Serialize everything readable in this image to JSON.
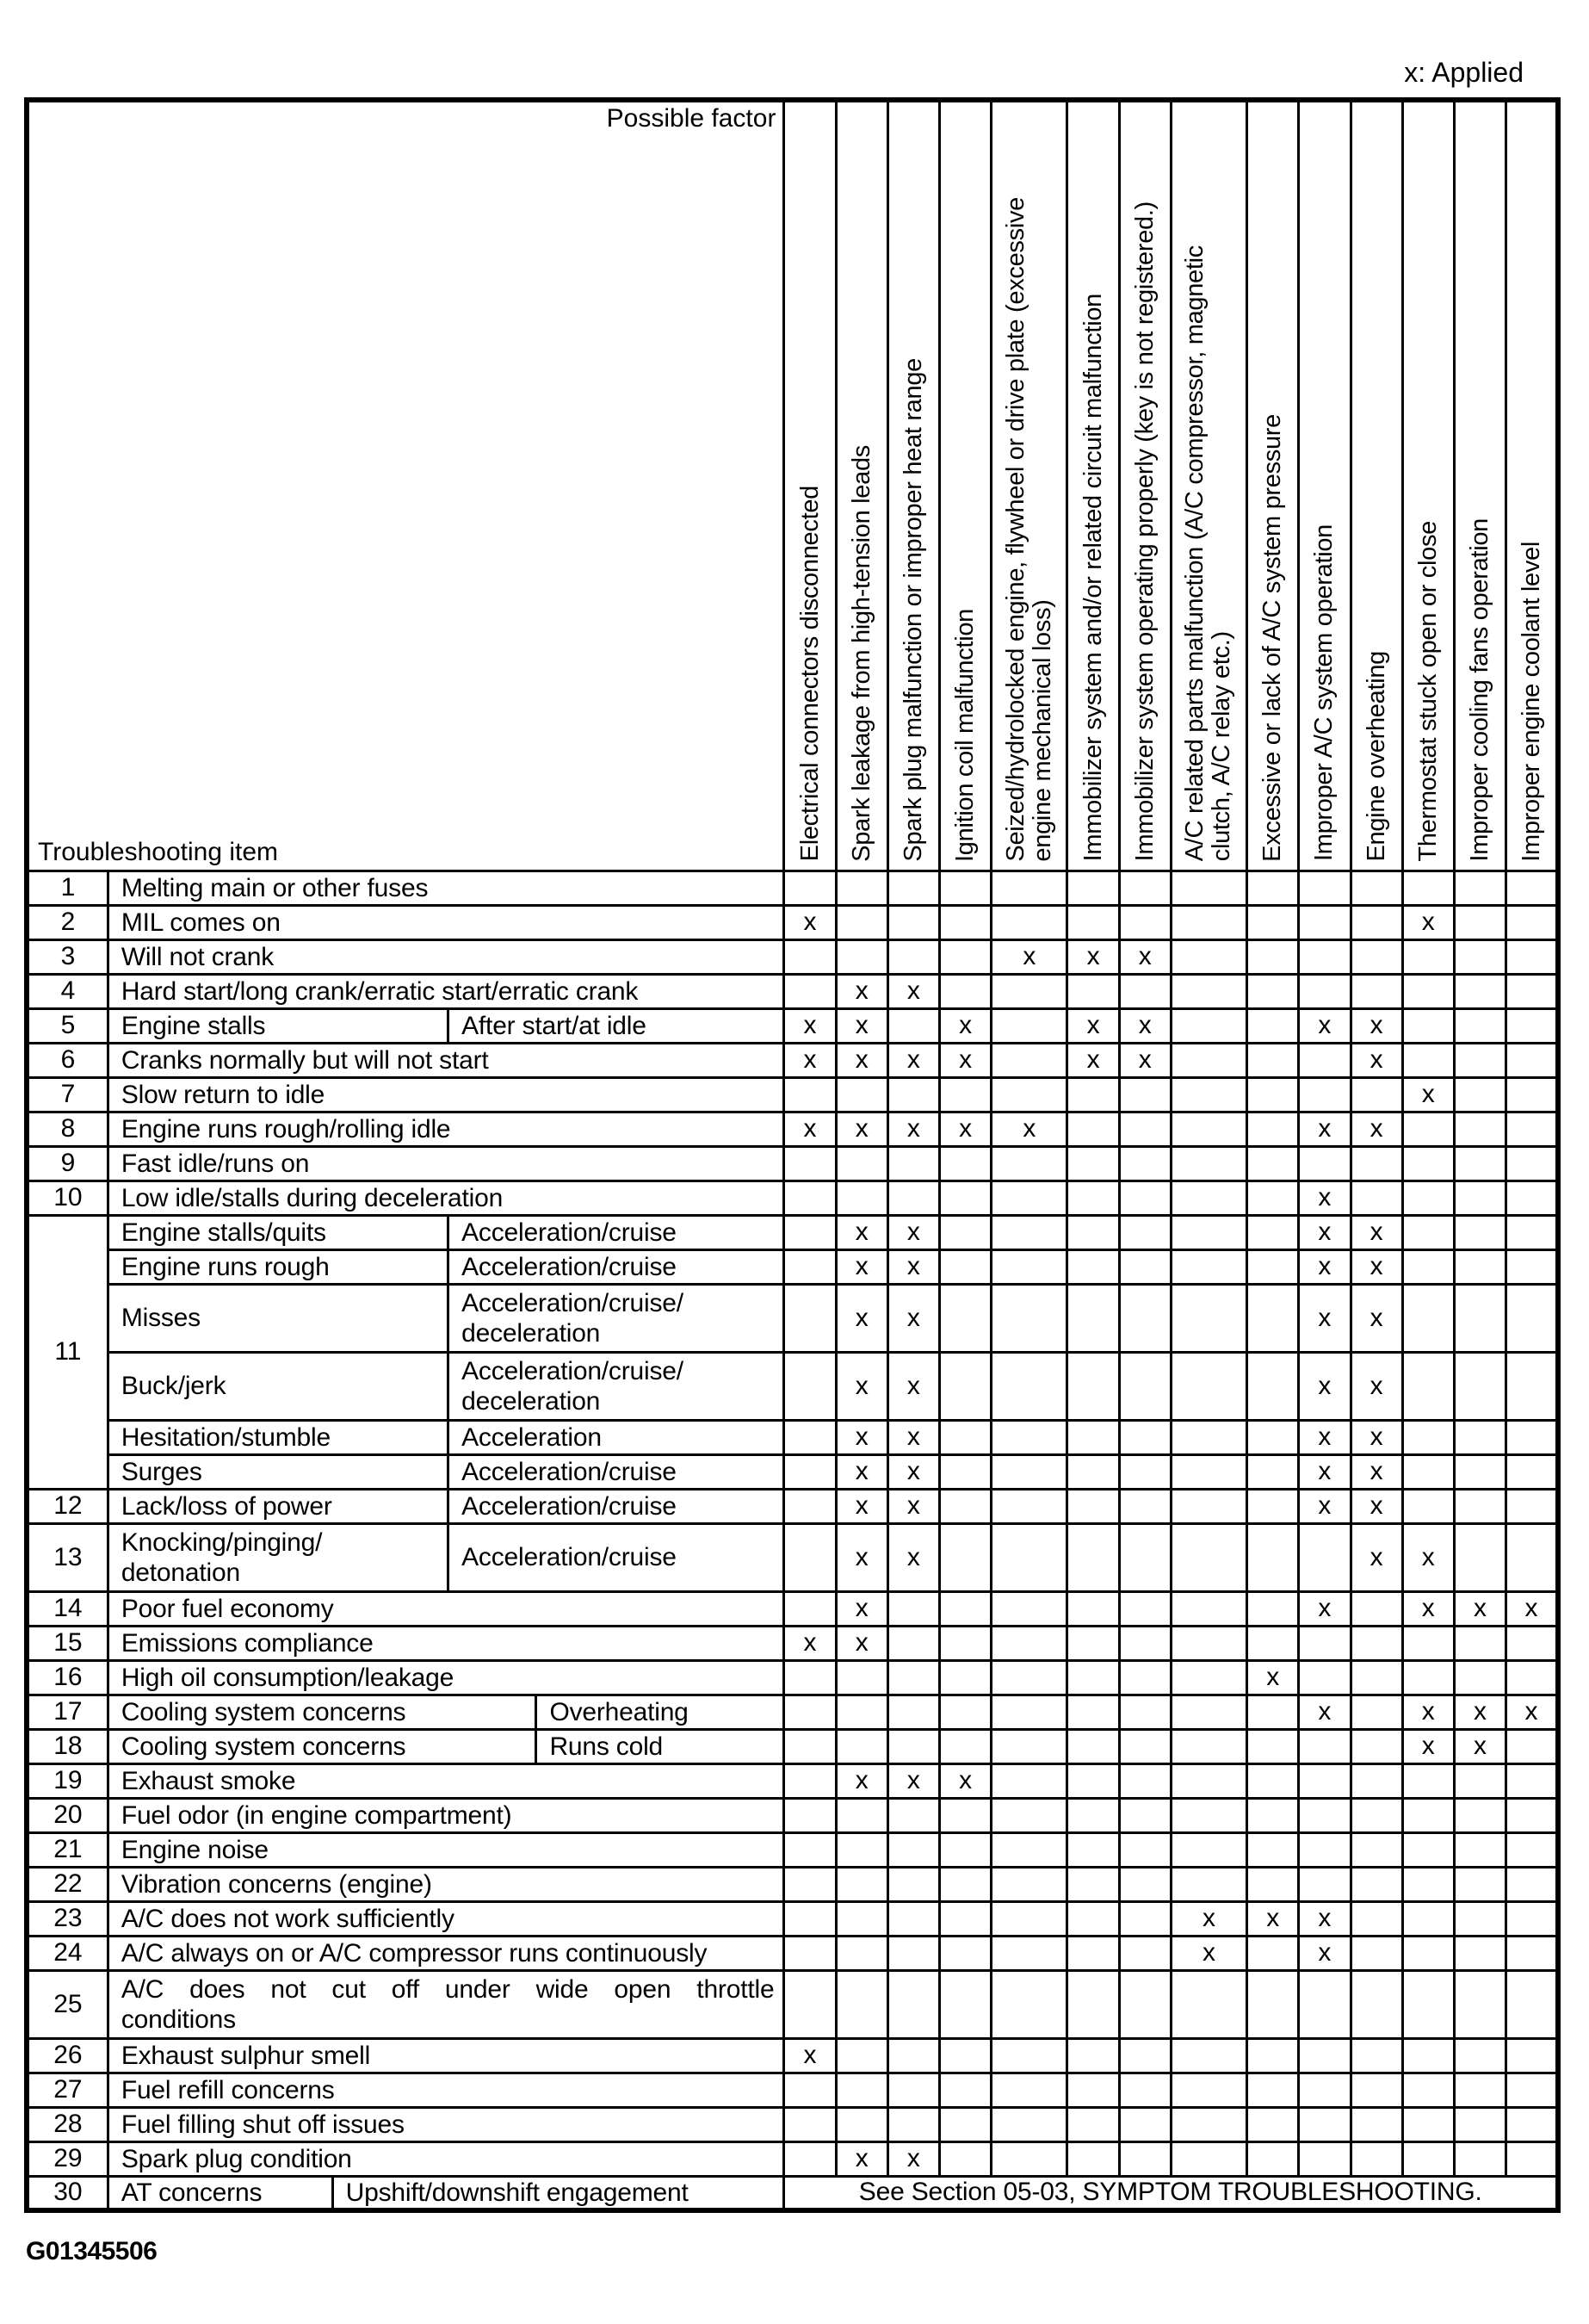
{
  "legend": "x: Applied",
  "figure_id": "G01345506",
  "table": {
    "mark_char": "x",
    "corner_top_right": "Possible factor",
    "corner_bottom_left": "Troubleshooting item",
    "factors": [
      {
        "label": "Electrical connectors disconnected"
      },
      {
        "label": "Spark leakage from high-tension leads"
      },
      {
        "label": "Spark plug malfunction or improper heat range"
      },
      {
        "label": "Ignition coil malfunction"
      },
      {
        "label": "Seized/hydrolocked engine, flywheel or drive plate (excessive\nengine mechanical loss)"
      },
      {
        "label": "Immobilizer system and/or related circuit malfunction"
      },
      {
        "label": "Immobilizer system operating properly (key is not registered.)"
      },
      {
        "label": "A/C related parts malfunction (A/C compressor, magnetic\nclutch, A/C relay etc.)"
      },
      {
        "label": "Excessive or lack of A/C system pressure"
      },
      {
        "label": "Improper A/C system operation"
      },
      {
        "label": "Engine overheating"
      },
      {
        "label": "Thermostat stuck open or close"
      },
      {
        "label": "Improper cooling fans operation"
      },
      {
        "label": "Improper engine coolant level"
      }
    ],
    "rows": [
      {
        "num": "1",
        "cells": [
          {
            "text": "Melting main or other fuses",
            "span": "full"
          }
        ],
        "marks": []
      },
      {
        "num": "2",
        "cells": [
          {
            "text": "MIL comes on",
            "span": "full"
          }
        ],
        "marks": [
          1,
          12
        ]
      },
      {
        "num": "3",
        "cells": [
          {
            "text": "Will not crank",
            "span": "full"
          }
        ],
        "marks": [
          5,
          6,
          7
        ]
      },
      {
        "num": "4",
        "cells": [
          {
            "text": "Hard start/long crank/erratic start/erratic crank",
            "span": "full"
          }
        ],
        "marks": [
          2,
          3
        ]
      },
      {
        "num": "5",
        "cells": [
          {
            "text": "Engine stalls",
            "span": "bc"
          },
          {
            "text": "After start/at idle",
            "span": "de"
          }
        ],
        "marks": [
          1,
          2,
          4,
          6,
          7,
          10,
          11
        ]
      },
      {
        "num": "6",
        "cells": [
          {
            "text": "Cranks normally but will not start",
            "span": "full"
          }
        ],
        "marks": [
          1,
          2,
          3,
          4,
          6,
          7,
          11
        ]
      },
      {
        "num": "7",
        "cells": [
          {
            "text": "Slow return to idle",
            "span": "full"
          }
        ],
        "marks": [
          12
        ]
      },
      {
        "num": "8",
        "cells": [
          {
            "text": "Engine runs rough/rolling idle",
            "span": "full"
          }
        ],
        "marks": [
          1,
          2,
          3,
          4,
          5,
          10,
          11
        ]
      },
      {
        "num": "9",
        "cells": [
          {
            "text": "Fast idle/runs on",
            "span": "full"
          }
        ],
        "marks": []
      },
      {
        "num": "10",
        "cells": [
          {
            "text": "Low idle/stalls during deceleration",
            "span": "full"
          }
        ],
        "marks": [
          10
        ]
      },
      {
        "num": "11",
        "subrows": [
          {
            "cells": [
              {
                "text": "Engine stalls/quits",
                "span": "bc"
              },
              {
                "text": "Acceleration/cruise",
                "span": "de"
              }
            ],
            "marks": [
              2,
              3,
              10,
              11
            ]
          },
          {
            "cells": [
              {
                "text": "Engine runs rough",
                "span": "bc"
              },
              {
                "text": "Acceleration/cruise",
                "span": "de"
              }
            ],
            "marks": [
              2,
              3,
              10,
              11
            ]
          },
          {
            "cells": [
              {
                "text": "Misses",
                "span": "bc"
              },
              {
                "text": "Acceleration/cruise/ deceleration",
                "span": "de"
              }
            ],
            "marks": [
              2,
              3,
              10,
              11
            ],
            "tall": true
          },
          {
            "cells": [
              {
                "text": "Buck/jerk",
                "span": "bc"
              },
              {
                "text": "Acceleration/cruise/ deceleration",
                "span": "de"
              }
            ],
            "marks": [
              2,
              3,
              10,
              11
            ],
            "tall": true
          },
          {
            "cells": [
              {
                "text": "Hesitation/stumble",
                "span": "bc"
              },
              {
                "text": "Acceleration",
                "span": "de"
              }
            ],
            "marks": [
              2,
              3,
              10,
              11
            ]
          },
          {
            "cells": [
              {
                "text": "Surges",
                "span": "bc"
              },
              {
                "text": "Acceleration/cruise",
                "span": "de"
              }
            ],
            "marks": [
              2,
              3,
              10,
              11
            ]
          }
        ]
      },
      {
        "num": "12",
        "cells": [
          {
            "text": "Lack/loss of power",
            "span": "bc"
          },
          {
            "text": "Acceleration/cruise",
            "span": "de"
          }
        ],
        "marks": [
          2,
          3,
          10,
          11
        ]
      },
      {
        "num": "13",
        "cells": [
          {
            "text": "Knocking/pinging/ detonation",
            "span": "bc"
          },
          {
            "text": "Acceleration/cruise",
            "span": "de"
          }
        ],
        "marks": [
          2,
          3,
          11,
          12
        ],
        "tall": true
      },
      {
        "num": "14",
        "cells": [
          {
            "text": "Poor fuel economy",
            "span": "full"
          }
        ],
        "marks": [
          2,
          10,
          12,
          13,
          14
        ]
      },
      {
        "num": "15",
        "cells": [
          {
            "text": "Emissions compliance",
            "span": "full"
          }
        ],
        "marks": [
          1,
          2
        ]
      },
      {
        "num": "16",
        "cells": [
          {
            "text": "High oil consumption/leakage",
            "span": "full"
          }
        ],
        "marks": [
          9
        ]
      },
      {
        "num": "17",
        "cells": [
          {
            "text": "Cooling system concerns",
            "span": "bcd"
          },
          {
            "text": "Overheating",
            "span": "e"
          }
        ],
        "marks": [
          10,
          12,
          13,
          14
        ]
      },
      {
        "num": "18",
        "cells": [
          {
            "text": "Cooling system concerns",
            "span": "bcd"
          },
          {
            "text": "Runs cold",
            "span": "e"
          }
        ],
        "marks": [
          12,
          13
        ]
      },
      {
        "num": "19",
        "cells": [
          {
            "text": "Exhaust smoke",
            "span": "full"
          }
        ],
        "marks": [
          2,
          3,
          4
        ]
      },
      {
        "num": "20",
        "cells": [
          {
            "text": "Fuel odor (in engine compartment)",
            "span": "full"
          }
        ],
        "marks": []
      },
      {
        "num": "21",
        "cells": [
          {
            "text": "Engine noise",
            "span": "full"
          }
        ],
        "marks": []
      },
      {
        "num": "22",
        "cells": [
          {
            "text": "Vibration concerns (engine)",
            "span": "full"
          }
        ],
        "marks": []
      },
      {
        "num": "23",
        "cells": [
          {
            "text": "A/C does not work sufficiently",
            "span": "full"
          }
        ],
        "marks": [
          8,
          9,
          10
        ]
      },
      {
        "num": "24",
        "cells": [
          {
            "text": "A/C always on or A/C compressor runs continuously",
            "span": "full"
          }
        ],
        "marks": [
          8,
          10
        ]
      },
      {
        "num": "25",
        "cells": [
          {
            "text": "A/C does not cut off under wide open throttle conditions",
            "span": "full",
            "justify": true
          }
        ],
        "marks": [],
        "tall": true
      },
      {
        "num": "26",
        "cells": [
          {
            "text": "Exhaust sulphur smell",
            "span": "full"
          }
        ],
        "marks": [
          1
        ]
      },
      {
        "num": "27",
        "cells": [
          {
            "text": "Fuel refill concerns",
            "span": "full"
          }
        ],
        "marks": []
      },
      {
        "num": "28",
        "cells": [
          {
            "text": "Fuel filling shut off issues",
            "span": "full"
          }
        ],
        "marks": []
      },
      {
        "num": "29",
        "cells": [
          {
            "text": "Spark plug condition",
            "span": "full"
          }
        ],
        "marks": [
          2,
          3
        ]
      },
      {
        "num": "30",
        "cells": [
          {
            "text": "AT concerns",
            "span": "b"
          },
          {
            "text": "Upshift/downshift engagement",
            "span": "cde"
          }
        ],
        "note": "See Section 05-03, SYMPTOM TROUBLESHOOTING."
      }
    ]
  }
}
